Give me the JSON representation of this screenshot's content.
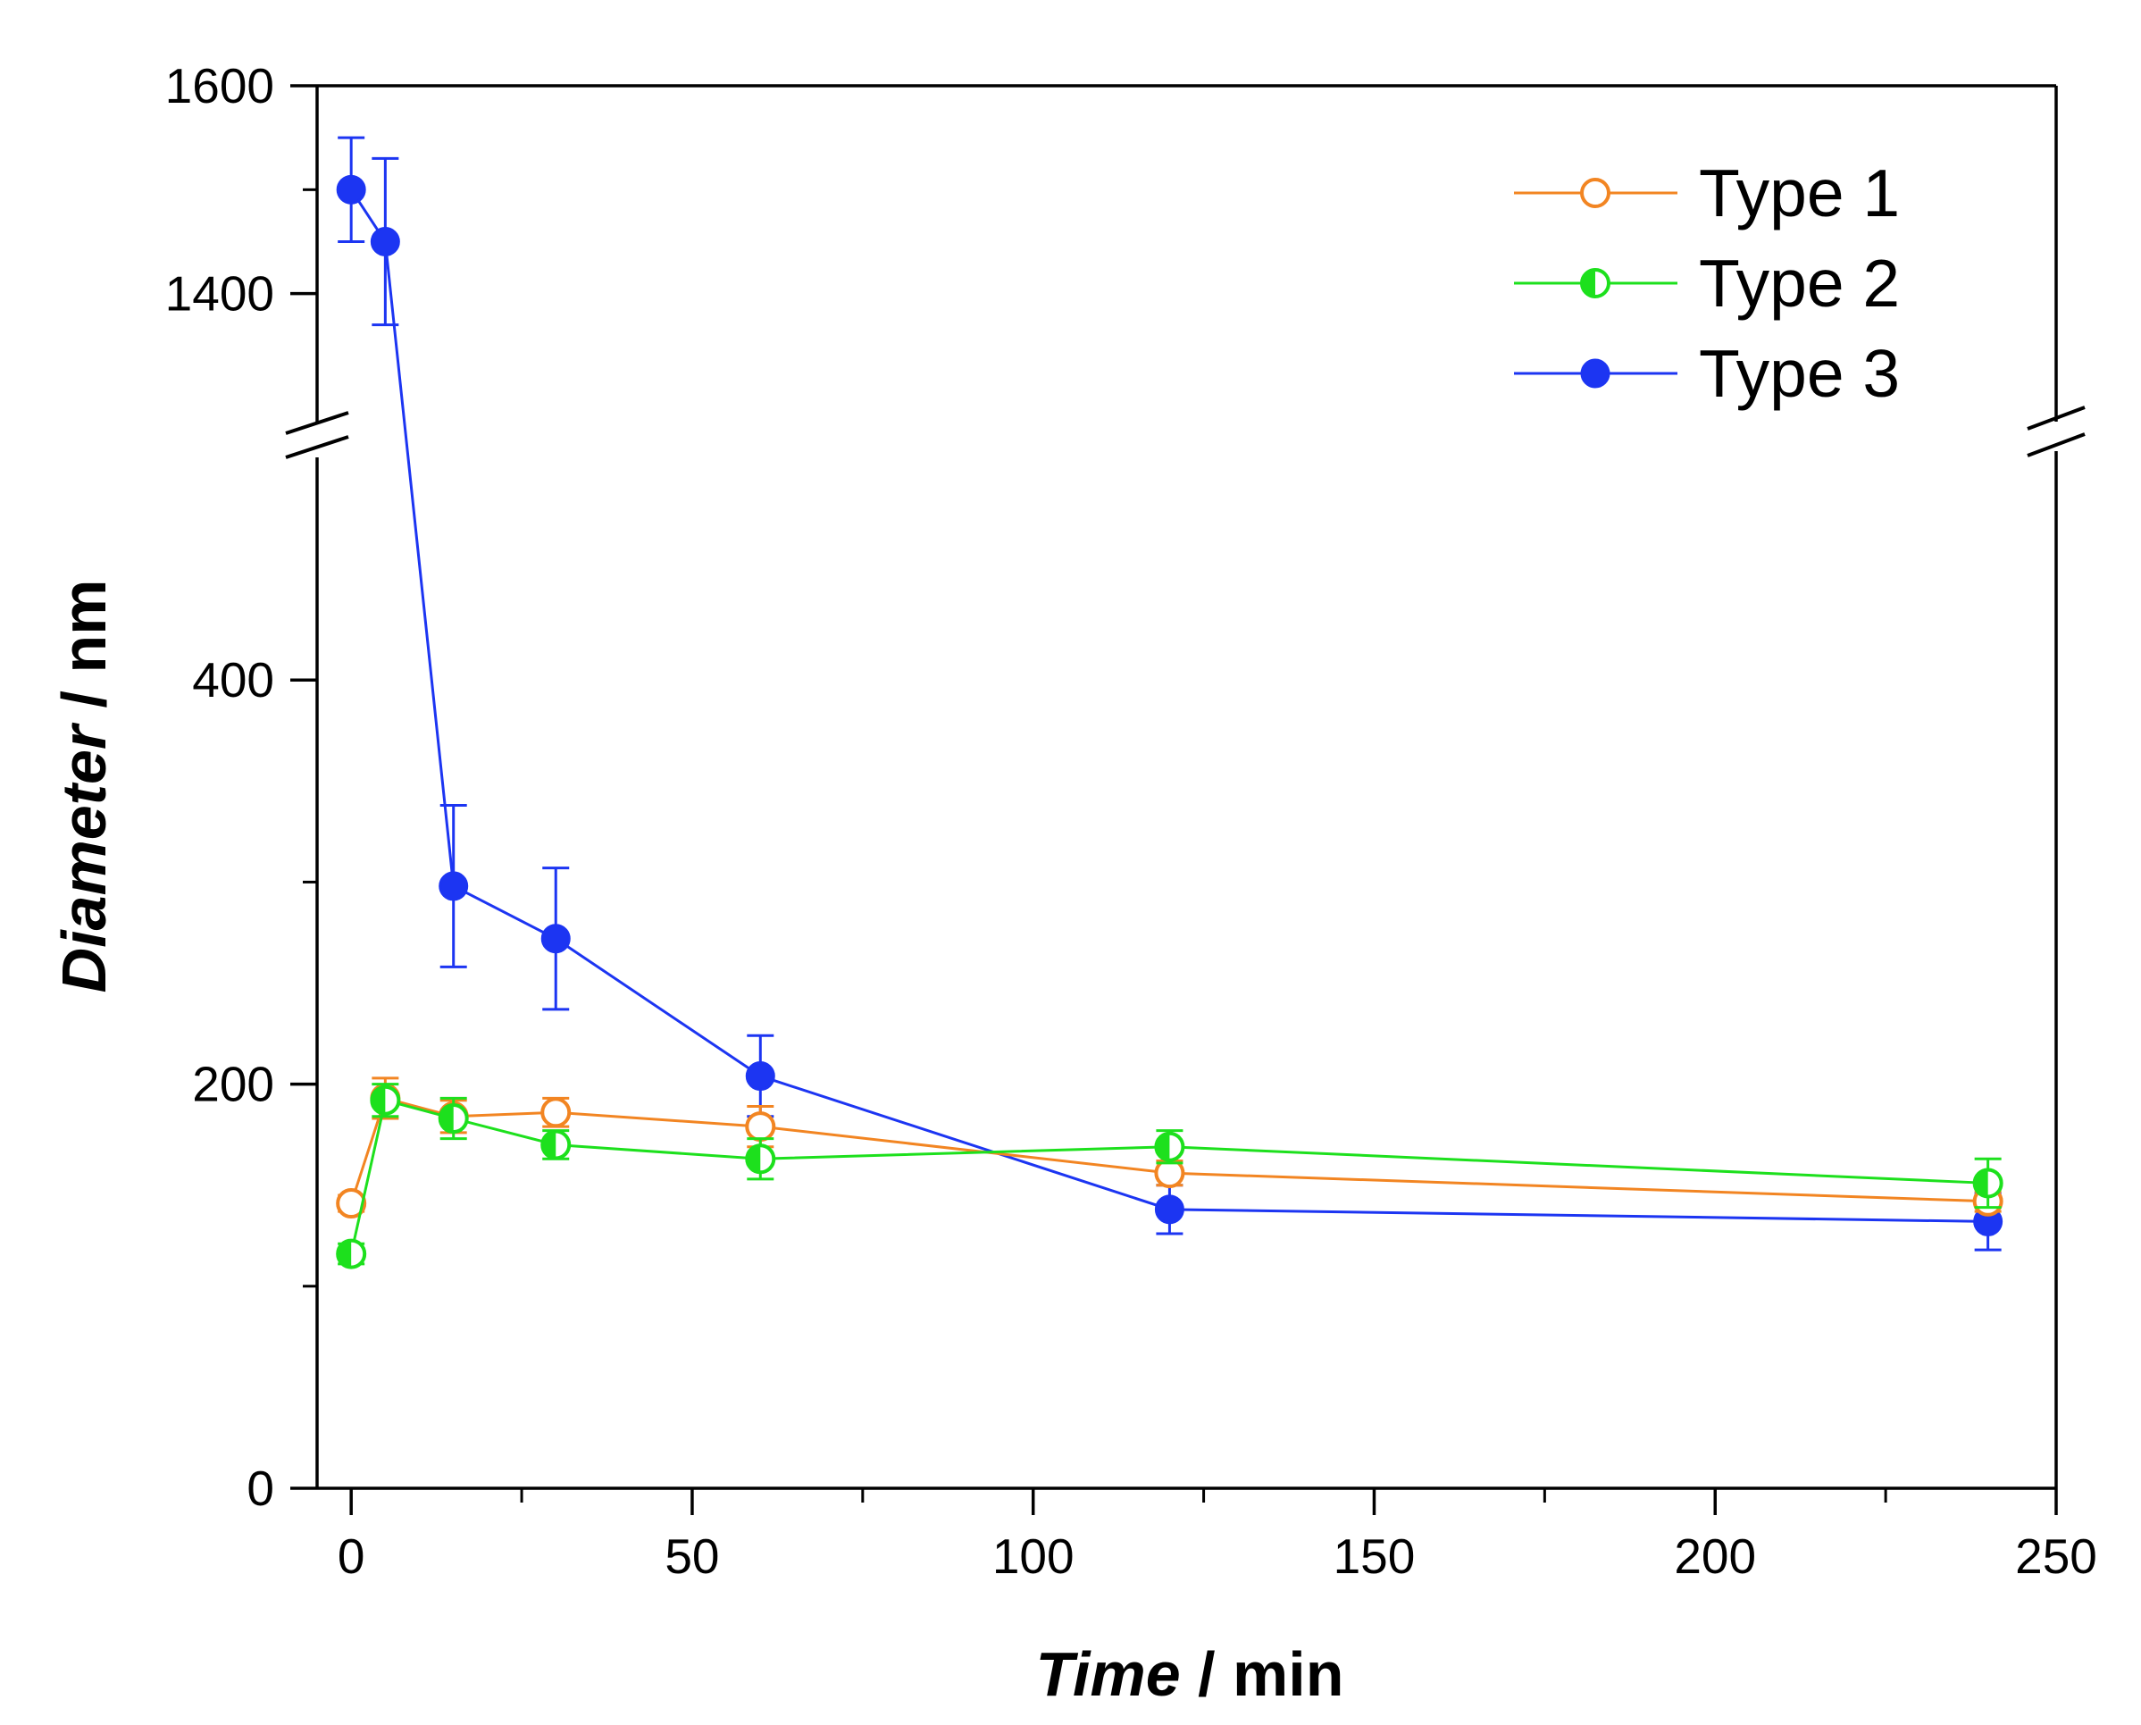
{
  "chart_data": {
    "type": "line",
    "title": "",
    "xlabel": {
      "italic": "Time",
      "rest": " / min"
    },
    "ylabel": {
      "italic": "Diameter",
      "rest": " / nm"
    },
    "xlim": [
      -5,
      250
    ],
    "ylim_lower": [
      0,
      500
    ],
    "ylim_upper": [
      1300,
      1600
    ],
    "axis_break": "between 500 and 1300 on the y-axis",
    "x_ticks": [
      0,
      50,
      100,
      150,
      200,
      250
    ],
    "y_ticks_lower": [
      0,
      200,
      400
    ],
    "y_ticks_upper": [
      1400,
      1600
    ],
    "grid": false,
    "legend_position": "top-right",
    "series": [
      {
        "name": "Type 1",
        "color": "#F28522",
        "marker": "open-circle",
        "x": [
          0,
          5,
          15,
          30,
          60,
          120,
          240
        ],
        "y": [
          141,
          193,
          184,
          186,
          179,
          156,
          142
        ],
        "err": [
          4,
          10,
          8,
          7,
          10,
          6,
          5
        ]
      },
      {
        "name": "Type 2",
        "color": "#1DE01D",
        "marker": "half-filled-circle",
        "x": [
          0,
          5,
          15,
          30,
          60,
          120,
          240
        ],
        "y": [
          116,
          192,
          183,
          170,
          163,
          169,
          151
        ],
        "err": [
          5,
          8,
          10,
          7,
          10,
          8,
          12
        ]
      },
      {
        "name": "Type 3",
        "color": "#1C35F2",
        "marker": "filled-circle",
        "x": [
          0,
          5,
          15,
          30,
          60,
          120,
          240
        ],
        "y": [
          1500,
          1450,
          298,
          272,
          204,
          138,
          132
        ],
        "err": [
          50,
          80,
          40,
          35,
          20,
          12,
          14
        ]
      }
    ]
  }
}
